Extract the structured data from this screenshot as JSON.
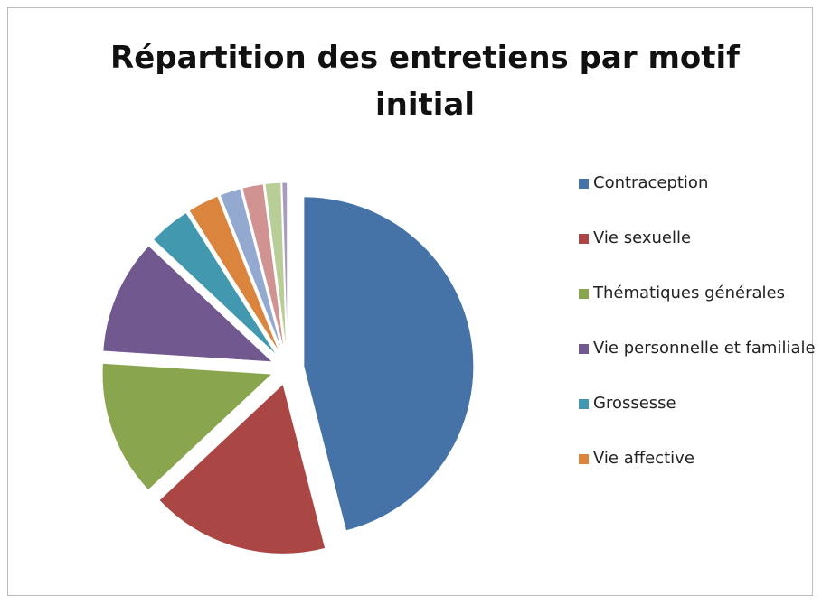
{
  "chart_data": {
    "type": "pie",
    "title": "Répartition des entretiens par motif initial",
    "categories": [
      "Contraception",
      "Vie sexuelle",
      "Thématiques générales",
      "Vie personnelle et familiale",
      "Grossesse",
      "Vie affective",
      null,
      null,
      null,
      null
    ],
    "values": [
      46,
      17,
      13,
      11,
      4,
      3,
      2,
      2,
      1.5,
      0.5
    ],
    "colors": [
      "#4572a7",
      "#aa4643",
      "#89a54e",
      "#71588f",
      "#4198af",
      "#db843d",
      "#93a9cf",
      "#d19392",
      "#b9cd96",
      "#a99bbd"
    ],
    "exploded": true
  }
}
